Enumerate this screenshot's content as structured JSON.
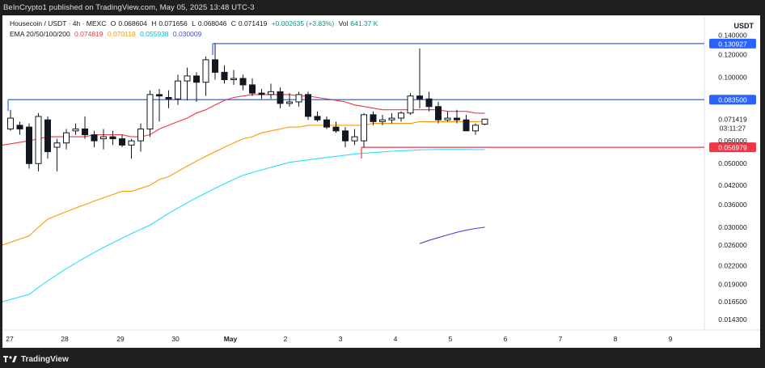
{
  "header": {
    "publish_line": "BeInCrypto1 published on TradingView.com, May 05, 2025 13:48 UTC-3"
  },
  "footer": {
    "brand": "TradingView"
  },
  "legend": {
    "symbol": "Housecoin / USDT · 4h · MEXC",
    "ohlc_o_label": "O",
    "ohlc_o": "0.068604",
    "ohlc_h_label": "H",
    "ohlc_h": "0.071656",
    "ohlc_l_label": "L",
    "ohlc_l": "0.068046",
    "ohlc_c_label": "C",
    "ohlc_c": "0.071419",
    "change": "+0.002635 (+3.83%)",
    "vol_label": "Vol",
    "vol": "641.37 K",
    "ema_label": "EMA 20/50/100/200",
    "ema20": "0.074819",
    "ema50": "0.070118",
    "ema100": "0.055938",
    "ema200": "0.030009"
  },
  "colors": {
    "ema20": "#f23645",
    "ema50": "#ff9800",
    "ema100": "#26e0ff",
    "ema200": "#5b3ee0",
    "level_blue": "#2962ff",
    "level_red": "#f23645",
    "candle": "#131722"
  },
  "chart_data": {
    "type": "candlestick",
    "currency": "USDT",
    "y_scale": "log",
    "ylim": [
      0.0135,
      0.16
    ],
    "y_ticks": [
      "0.140000",
      "0.120000",
      "0.100000",
      "0.071419",
      "03:11:27",
      "0.060000",
      "0.050000",
      "0.042000",
      "0.036000",
      "0.030000",
      "0.026000",
      "0.022000",
      "0.019000",
      "0.016500",
      "0.014300"
    ],
    "x_ticks": [
      "27",
      "28",
      "29",
      "30",
      "May",
      "2",
      "3",
      "4",
      "5",
      "6",
      "7",
      "8",
      "9"
    ],
    "levels": [
      {
        "value": 0.130927,
        "label": "0.130927",
        "color": "blue"
      },
      {
        "value": 0.0835,
        "label": "0.083500",
        "color": "blue"
      },
      {
        "value": 0.056979,
        "label": "0.056979",
        "color": "red"
      }
    ],
    "candles": [
      {
        "o": 0.066,
        "h": 0.077,
        "l": 0.065,
        "c": 0.072
      },
      {
        "o": 0.068,
        "h": 0.07,
        "l": 0.063,
        "c": 0.066
      },
      {
        "o": 0.067,
        "h": 0.069,
        "l": 0.048,
        "c": 0.05
      },
      {
        "o": 0.05,
        "h": 0.075,
        "l": 0.047,
        "c": 0.073
      },
      {
        "o": 0.071,
        "h": 0.073,
        "l": 0.052,
        "c": 0.055
      },
      {
        "o": 0.057,
        "h": 0.061,
        "l": 0.047,
        "c": 0.059
      },
      {
        "o": 0.059,
        "h": 0.066,
        "l": 0.056,
        "c": 0.064
      },
      {
        "o": 0.065,
        "h": 0.069,
        "l": 0.063,
        "c": 0.066
      },
      {
        "o": 0.066,
        "h": 0.073,
        "l": 0.061,
        "c": 0.063
      },
      {
        "o": 0.063,
        "h": 0.065,
        "l": 0.057,
        "c": 0.06
      },
      {
        "o": 0.061,
        "h": 0.066,
        "l": 0.056,
        "c": 0.062
      },
      {
        "o": 0.062,
        "h": 0.065,
        "l": 0.058,
        "c": 0.061
      },
      {
        "o": 0.061,
        "h": 0.063,
        "l": 0.057,
        "c": 0.058
      },
      {
        "o": 0.058,
        "h": 0.061,
        "l": 0.052,
        "c": 0.06
      },
      {
        "o": 0.06,
        "h": 0.069,
        "l": 0.055,
        "c": 0.066
      },
      {
        "o": 0.066,
        "h": 0.09,
        "l": 0.062,
        "c": 0.087
      },
      {
        "o": 0.087,
        "h": 0.091,
        "l": 0.07,
        "c": 0.086
      },
      {
        "o": 0.085,
        "h": 0.09,
        "l": 0.078,
        "c": 0.084
      },
      {
        "o": 0.084,
        "h": 0.102,
        "l": 0.08,
        "c": 0.097
      },
      {
        "o": 0.097,
        "h": 0.108,
        "l": 0.083,
        "c": 0.101
      },
      {
        "o": 0.101,
        "h": 0.104,
        "l": 0.082,
        "c": 0.096
      },
      {
        "o": 0.096,
        "h": 0.118,
        "l": 0.086,
        "c": 0.115
      },
      {
        "o": 0.115,
        "h": 0.130927,
        "l": 0.098,
        "c": 0.104
      },
      {
        "o": 0.104,
        "h": 0.11,
        "l": 0.095,
        "c": 0.098
      },
      {
        "o": 0.098,
        "h": 0.106,
        "l": 0.094,
        "c": 0.099
      },
      {
        "o": 0.099,
        "h": 0.102,
        "l": 0.09,
        "c": 0.094
      },
      {
        "o": 0.094,
        "h": 0.099,
        "l": 0.086,
        "c": 0.088
      },
      {
        "o": 0.088,
        "h": 0.091,
        "l": 0.084,
        "c": 0.087
      },
      {
        "o": 0.087,
        "h": 0.095,
        "l": 0.084,
        "c": 0.089
      },
      {
        "o": 0.089,
        "h": 0.092,
        "l": 0.078,
        "c": 0.081
      },
      {
        "o": 0.081,
        "h": 0.088,
        "l": 0.079,
        "c": 0.082
      },
      {
        "o": 0.082,
        "h": 0.089,
        "l": 0.079,
        "c": 0.087
      },
      {
        "o": 0.087,
        "h": 0.089,
        "l": 0.071,
        "c": 0.073
      },
      {
        "o": 0.073,
        "h": 0.076,
        "l": 0.07,
        "c": 0.071
      },
      {
        "o": 0.071,
        "h": 0.073,
        "l": 0.066,
        "c": 0.067
      },
      {
        "o": 0.067,
        "h": 0.07,
        "l": 0.064,
        "c": 0.065
      },
      {
        "o": 0.065,
        "h": 0.067,
        "l": 0.057,
        "c": 0.06
      },
      {
        "o": 0.06,
        "h": 0.066,
        "l": 0.058,
        "c": 0.062
      },
      {
        "o": 0.06,
        "h": 0.075,
        "l": 0.057,
        "c": 0.074
      },
      {
        "o": 0.074,
        "h": 0.076,
        "l": 0.068,
        "c": 0.07
      },
      {
        "o": 0.07,
        "h": 0.074,
        "l": 0.068,
        "c": 0.071
      },
      {
        "o": 0.071,
        "h": 0.075,
        "l": 0.069,
        "c": 0.072
      },
      {
        "o": 0.072,
        "h": 0.076,
        "l": 0.07,
        "c": 0.075
      },
      {
        "o": 0.075,
        "h": 0.088,
        "l": 0.074,
        "c": 0.086
      },
      {
        "o": 0.086,
        "h": 0.126,
        "l": 0.078,
        "c": 0.084
      },
      {
        "o": 0.084,
        "h": 0.089,
        "l": 0.076,
        "c": 0.079
      },
      {
        "o": 0.079,
        "h": 0.082,
        "l": 0.069,
        "c": 0.071
      },
      {
        "o": 0.071,
        "h": 0.076,
        "l": 0.07,
        "c": 0.072
      },
      {
        "o": 0.072,
        "h": 0.077,
        "l": 0.069,
        "c": 0.071
      },
      {
        "o": 0.071,
        "h": 0.074,
        "l": 0.065,
        "c": 0.065
      },
      {
        "o": 0.065,
        "h": 0.069,
        "l": 0.063,
        "c": 0.068
      },
      {
        "o": 0.068604,
        "h": 0.071656,
        "l": 0.068046,
        "c": 0.071419
      }
    ],
    "ema20": [
      0.058,
      0.06,
      0.061,
      0.062,
      0.062,
      0.062,
      0.062,
      0.062,
      0.063,
      0.063,
      0.063,
      0.063,
      0.062,
      0.062,
      0.063,
      0.066,
      0.068,
      0.07,
      0.072,
      0.075,
      0.077,
      0.08,
      0.083,
      0.085,
      0.086,
      0.087,
      0.087,
      0.087,
      0.087,
      0.087,
      0.086,
      0.086,
      0.085,
      0.084,
      0.083,
      0.082,
      0.08,
      0.079,
      0.078,
      0.077,
      0.077,
      0.077,
      0.077,
      0.077,
      0.077,
      0.077,
      0.076,
      0.076,
      0.076,
      0.075,
      0.074819
    ],
    "ema50": [
      0.026,
      0.028,
      0.03,
      0.032,
      0.033,
      0.034,
      0.035,
      0.036,
      0.037,
      0.038,
      0.039,
      0.04,
      0.04,
      0.041,
      0.042,
      0.044,
      0.045,
      0.047,
      0.049,
      0.051,
      0.053,
      0.055,
      0.057,
      0.059,
      0.061,
      0.062,
      0.064,
      0.065,
      0.066,
      0.067,
      0.067,
      0.068,
      0.068,
      0.068,
      0.068,
      0.068,
      0.068,
      0.068,
      0.069,
      0.069,
      0.069,
      0.069,
      0.069,
      0.07,
      0.07,
      0.07,
      0.07,
      0.07,
      0.07,
      0.07,
      0.070118
    ],
    "ema100": [
      0.0165,
      0.0175,
      0.0185,
      0.0195,
      0.0205,
      0.0215,
      0.0225,
      0.0235,
      0.0245,
      0.0255,
      0.0265,
      0.0275,
      0.0285,
      0.0295,
      0.0305,
      0.032,
      0.0335,
      0.035,
      0.0365,
      0.038,
      0.0395,
      0.041,
      0.0425,
      0.044,
      0.0455,
      0.0465,
      0.0475,
      0.0485,
      0.0495,
      0.0505,
      0.051,
      0.0515,
      0.052,
      0.0525,
      0.053,
      0.0535,
      0.054,
      0.0543,
      0.0546,
      0.0549,
      0.0552,
      0.0554,
      0.0556,
      0.0558,
      0.0559,
      0.056,
      0.056,
      0.056,
      0.056,
      0.0559,
      0.055938
    ],
    "ema200": [
      0.0263,
      0.027,
      0.0276,
      0.0282,
      0.0288,
      0.0293,
      0.0297,
      0.030009
    ]
  }
}
